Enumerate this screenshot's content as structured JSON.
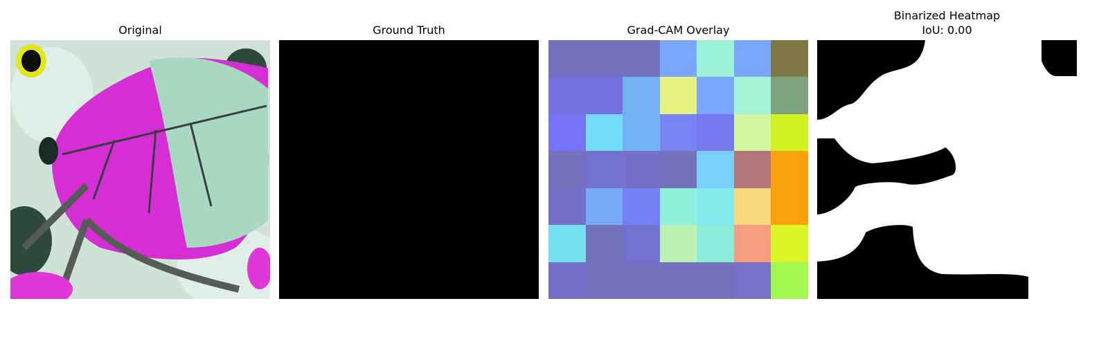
{
  "panels": {
    "original": {
      "title": "Original"
    },
    "ground_truth": {
      "title": "Ground Truth"
    },
    "overlay": {
      "title": "Grad-CAM Overlay"
    },
    "binarized": {
      "title_line1": "Binarized Heatmap",
      "title_line2": "IoU: 0.00"
    }
  },
  "gradcam_grid": [
    [
      "#7472bd",
      "#7472bd",
      "#7472bd",
      "#7aa6fb",
      "#9af1d8",
      "#7aa6fb",
      "#7e7944"
    ],
    [
      "#7470dd",
      "#7470dd",
      "#72b2f5",
      "#e8f080",
      "#7aa6fb",
      "#a3f5d5",
      "#7ea27e"
    ],
    [
      "#7572f5",
      "#72daf6",
      "#72b2f5",
      "#7884f6",
      "#7778f0",
      "#d3f59f",
      "#d3f224"
    ],
    [
      "#7472bd",
      "#7472d0",
      "#7472c8",
      "#7472bd",
      "#7ad0fb",
      "#b47779",
      "#f9a20d"
    ],
    [
      "#7472c8",
      "#76a9f6",
      "#7480f3",
      "#8df0da",
      "#82eaed",
      "#f9d77f",
      "#f9a20d"
    ],
    [
      "#76e0f0",
      "#7472bd",
      "#7472d0",
      "#bdf0b3",
      "#8cebd9",
      "#f69d7f",
      "#dbf526"
    ],
    [
      "#7472c8",
      "#7472bd",
      "#7472bd",
      "#7472bd",
      "#7472bd",
      "#7772c8",
      "#a3f74d"
    ]
  ]
}
